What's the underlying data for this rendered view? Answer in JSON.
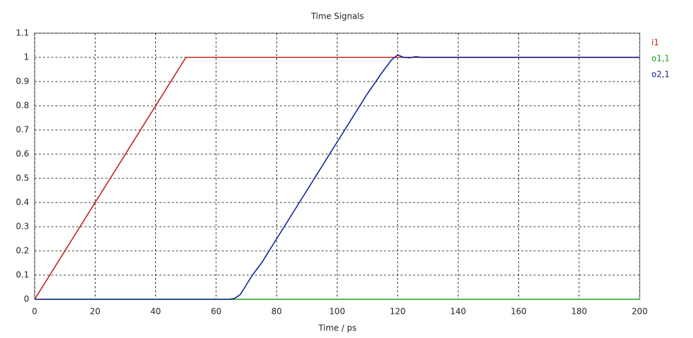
{
  "chart_data": {
    "type": "line",
    "title": "Time Signals",
    "x_label": "Time / ps",
    "xlim": [
      0,
      200
    ],
    "ylim": [
      0,
      1.1
    ],
    "xticks": [
      0,
      20,
      40,
      60,
      80,
      100,
      120,
      140,
      160,
      180,
      200
    ],
    "yticks": [
      0,
      0.1,
      0.2,
      0.3,
      0.4,
      0.5,
      0.6,
      0.7,
      0.8,
      0.9,
      1,
      1.1
    ],
    "grid": true,
    "legend": "right",
    "series": [
      {
        "name": "i1",
        "color": "#c0201a",
        "x": [
          0,
          50,
          200
        ],
        "values": [
          0,
          1,
          1
        ]
      },
      {
        "name": "o1,1",
        "color": "#1aa01a",
        "x": [
          0,
          200
        ],
        "values": [
          0,
          0
        ]
      },
      {
        "name": "o2,1",
        "color": "#10209a",
        "x": [
          0,
          64,
          66,
          68,
          70,
          72,
          75,
          80,
          90,
          100,
          110,
          115,
          118,
          120,
          122,
          124,
          126,
          128,
          130,
          200
        ],
        "values": [
          0,
          0,
          0.003,
          0.02,
          0.06,
          0.1,
          0.15,
          0.25,
          0.45,
          0.65,
          0.85,
          0.94,
          0.99,
          1.01,
          1.0,
          0.998,
          1.003,
          1.0,
          1.0,
          1.0
        ]
      }
    ]
  }
}
